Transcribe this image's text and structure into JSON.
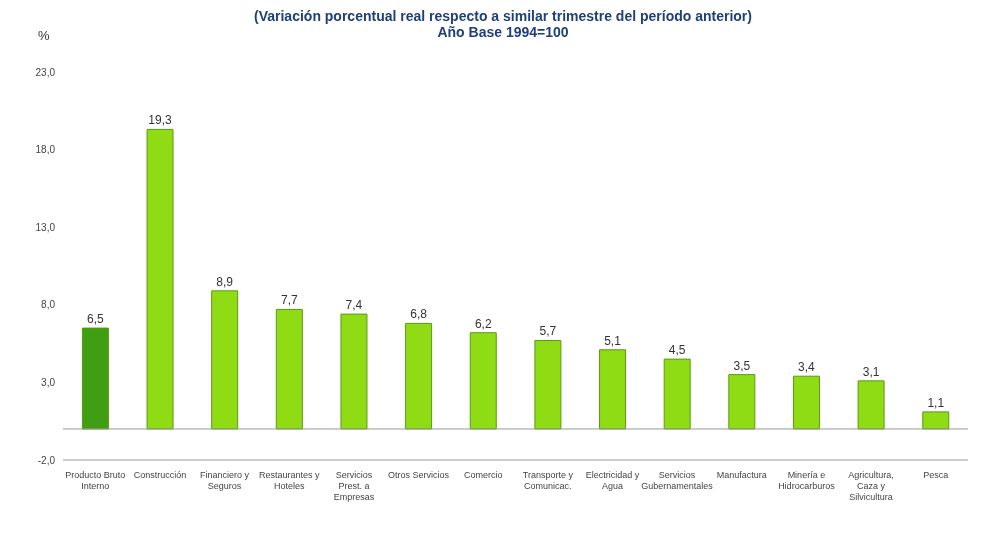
{
  "chart_data": {
    "type": "bar",
    "title": "(Variación porcentual real respecto a similar trimestre del período anterior)",
    "subtitle": "Año Base 1994=100",
    "ylabel": "%",
    "categories": [
      "Producto Bruto Interno",
      "Construcción",
      "Financiero y Seguros",
      "Restaurantes y Hoteles",
      "Servicios Prest. a Empresas",
      "Otros Servicios",
      "Comercio",
      "Transporte y Comunicac.",
      "Electricidad y Agua",
      "Servicios Gubernamentales",
      "Manufactura",
      "Minería e Hidrocarburos",
      "Agricultura, Caza y Silvicultura",
      "Pesca"
    ],
    "values": [
      6.5,
      19.3,
      8.9,
      7.7,
      7.4,
      6.8,
      6.2,
      5.7,
      5.1,
      4.5,
      3.5,
      3.4,
      3.1,
      1.1
    ],
    "value_labels": [
      "6,5",
      "19,3",
      "8,9",
      "7,7",
      "7,4",
      "6,8",
      "6,2",
      "5,7",
      "5,1",
      "4,5",
      "3,5",
      "3,4",
      "3,1",
      "1,1"
    ],
    "colors": [
      "#3f9e12",
      "#8fdc14",
      "#8fdc14",
      "#8fdc14",
      "#8fdc14",
      "#8fdc14",
      "#8fdc14",
      "#8fdc14",
      "#8fdc14",
      "#8fdc14",
      "#8fdc14",
      "#8fdc14",
      "#8fdc14",
      "#8fdc14"
    ],
    "ylim": [
      -2,
      23
    ],
    "yticks": [
      {
        "value": -2,
        "label": "-2,0"
      },
      {
        "value": 3,
        "label": "3,0"
      },
      {
        "value": 8,
        "label": "8,0"
      },
      {
        "value": 13,
        "label": "13,0"
      },
      {
        "value": 18,
        "label": "18,0"
      },
      {
        "value": 23,
        "label": "23,0"
      }
    ]
  }
}
